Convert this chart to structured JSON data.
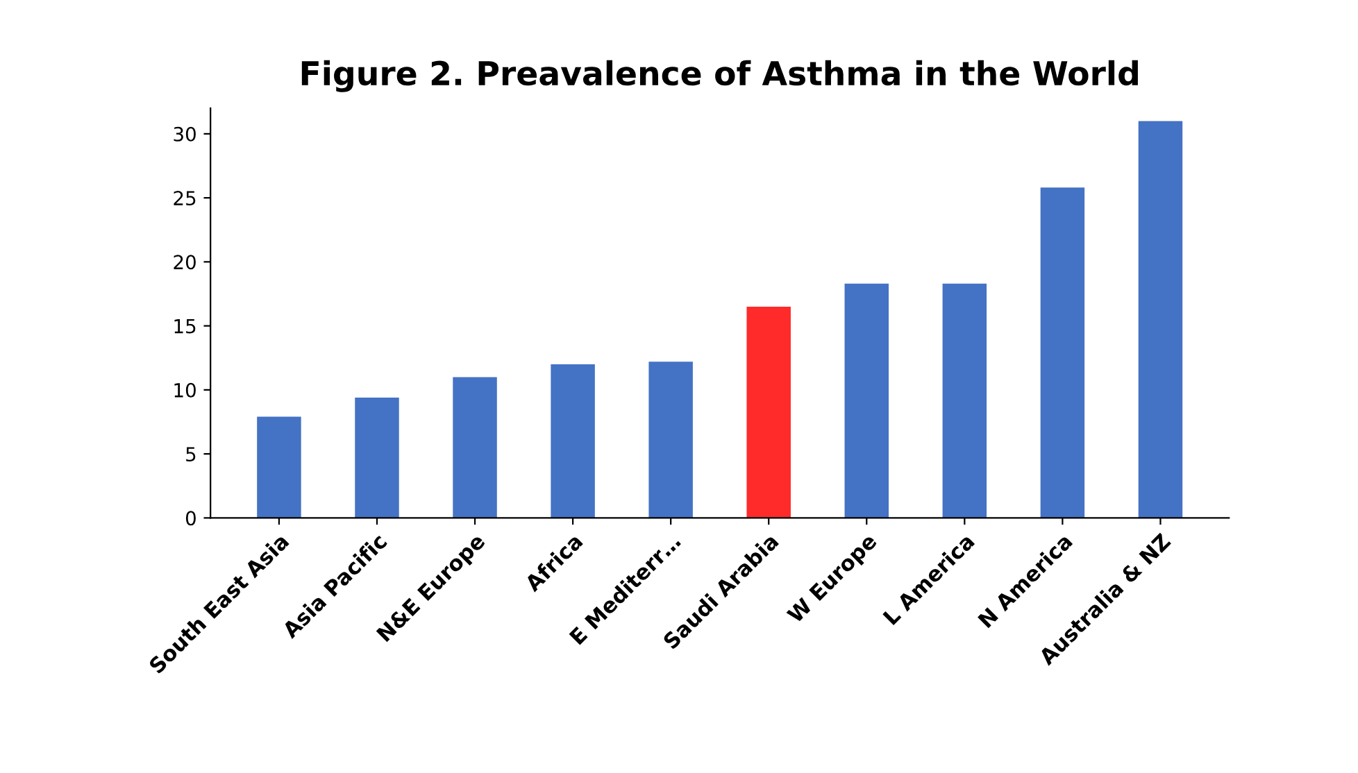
{
  "chart_data": {
    "type": "bar",
    "title": "Figure 2. Preavalence of Asthma in the World",
    "categories": [
      "South East Asia",
      "Asia Pacific",
      "N&E Europe",
      "Africa",
      "E Mediterr…",
      "Saudi Arabia",
      "W Europe",
      "L America",
      "N America",
      "Australia & NZ"
    ],
    "values": [
      7.9,
      9.4,
      11.0,
      12.0,
      12.2,
      16.5,
      18.3,
      18.3,
      25.8,
      31.0
    ],
    "colors": [
      "#4472c4",
      "#4472c4",
      "#4472c4",
      "#4472c4",
      "#4472c4",
      "#ff2a2a",
      "#4472c4",
      "#4472c4",
      "#4472c4",
      "#4472c4"
    ],
    "ylim": [
      0,
      32
    ],
    "yticks": [
      0,
      5,
      10,
      15,
      20,
      25,
      30
    ],
    "grid": false,
    "legend": false
  }
}
